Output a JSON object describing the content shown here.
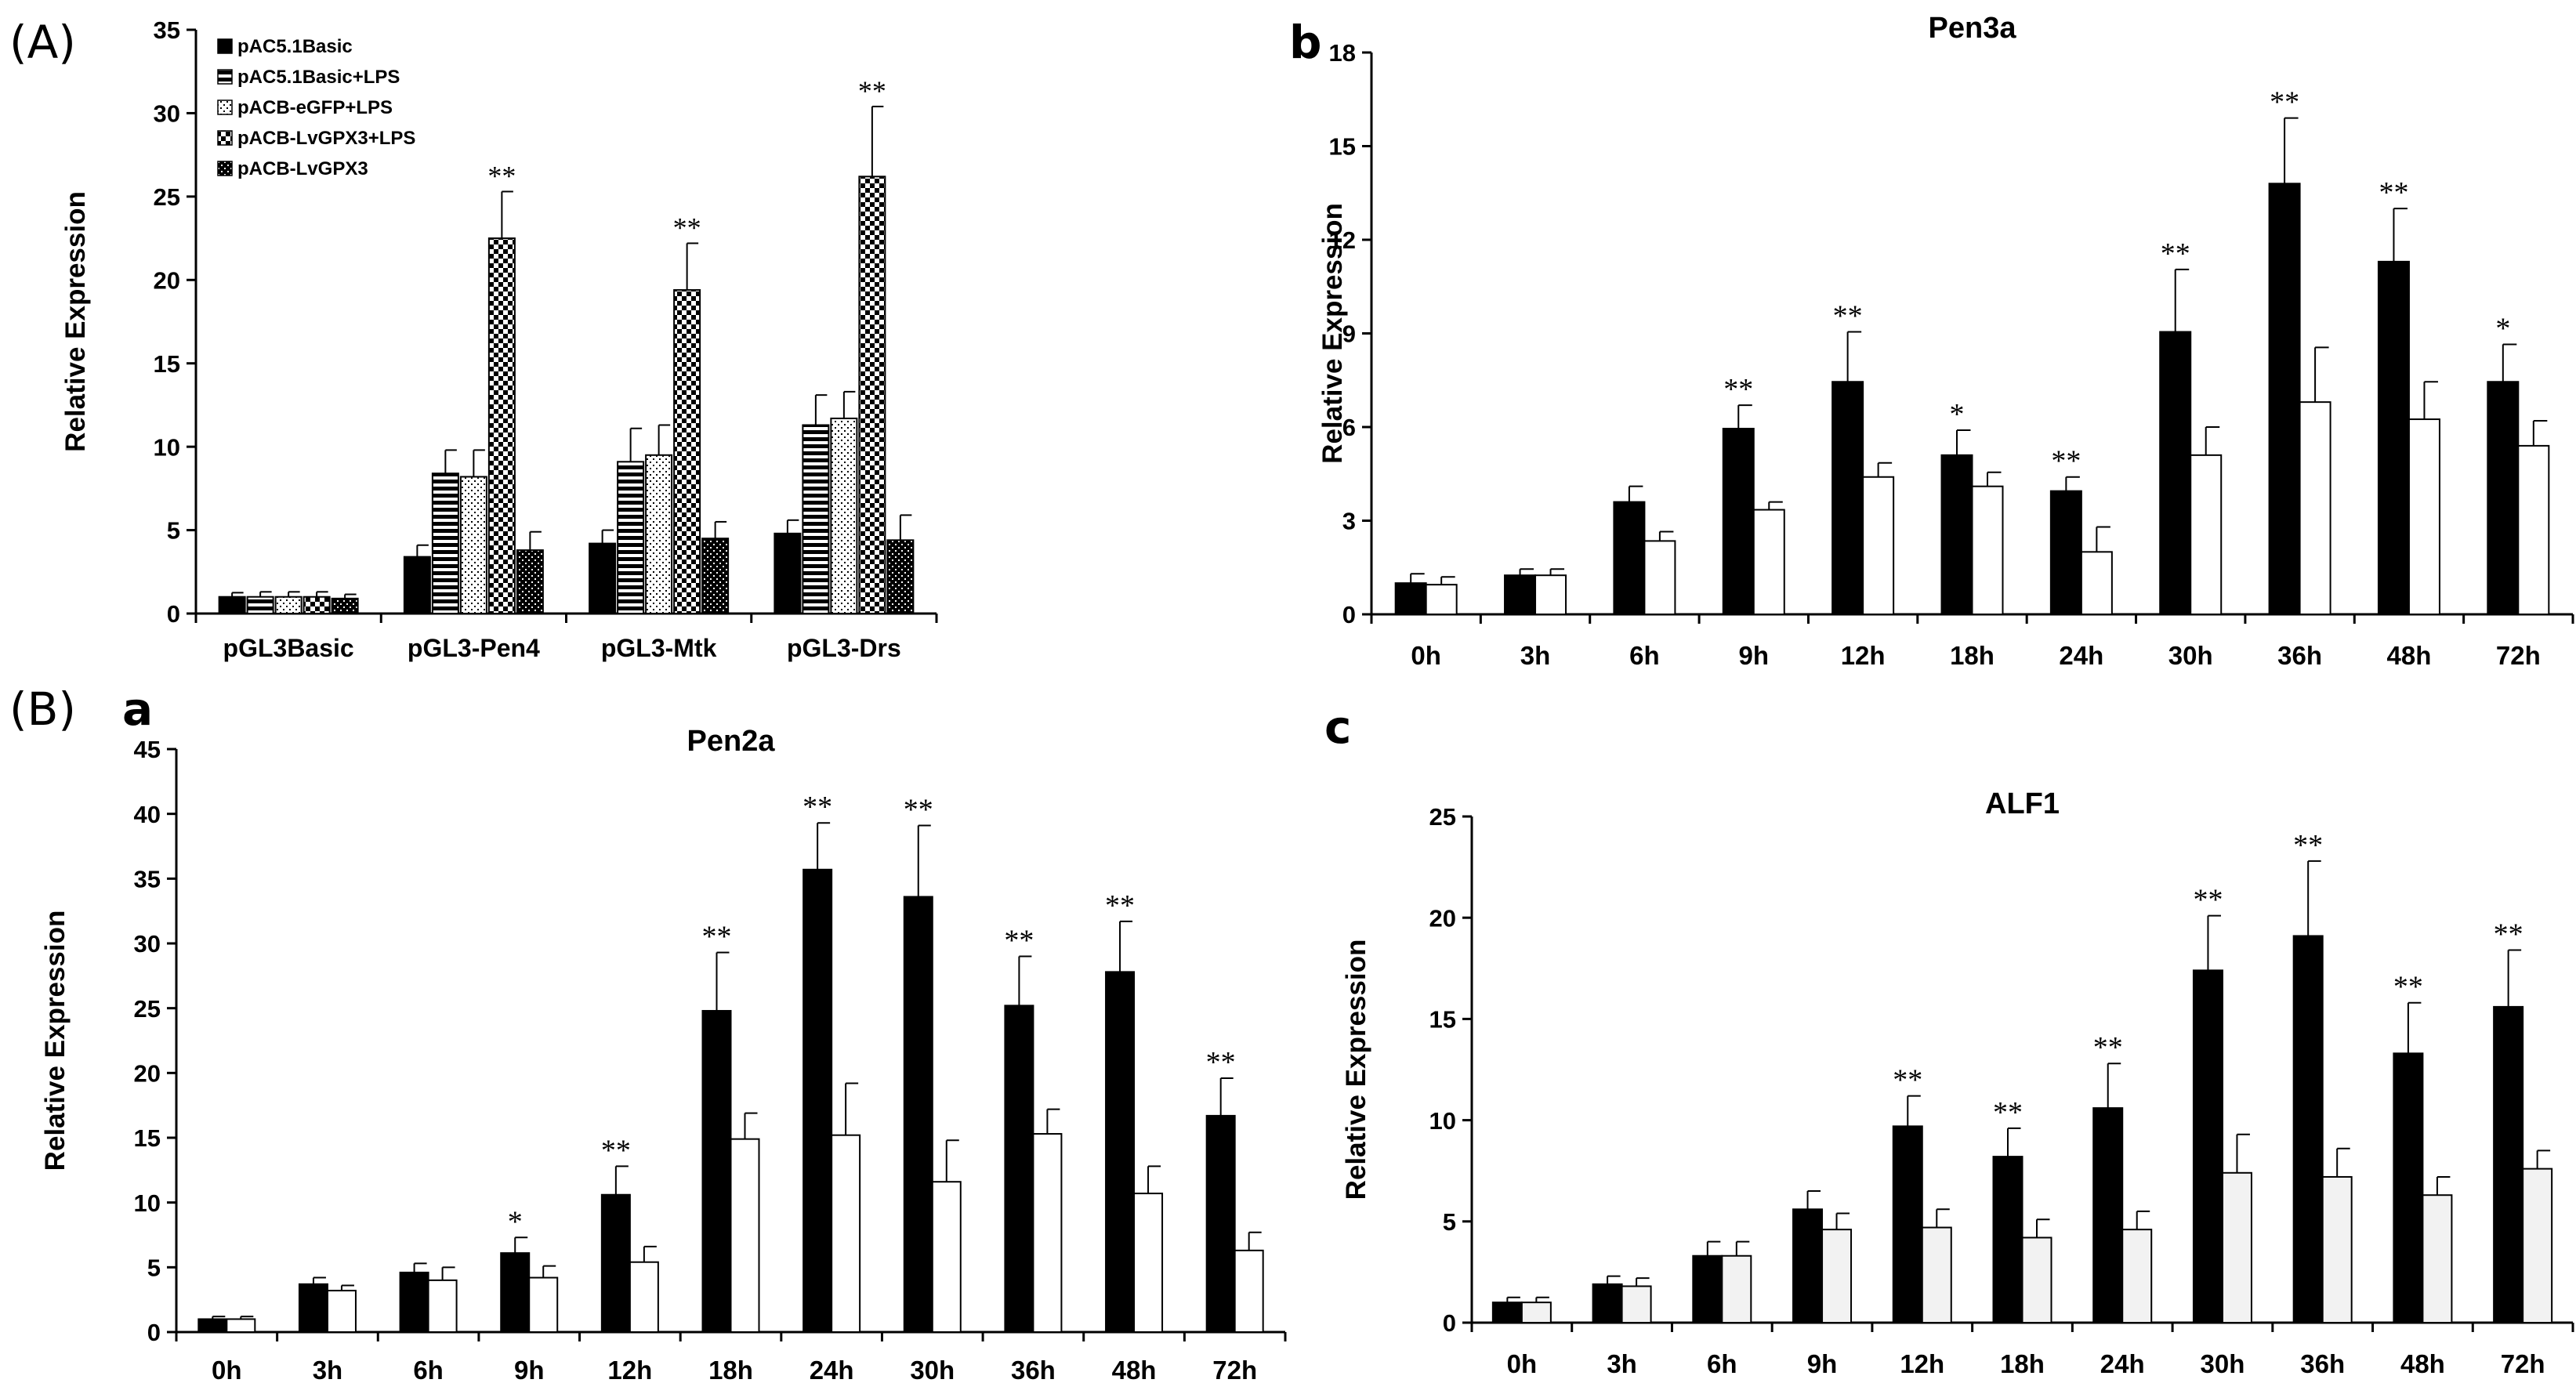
{
  "panel_letters": {
    "A": "(A)",
    "B": "(B)",
    "a": "a",
    "b": "b",
    "c": "c"
  },
  "colors": {
    "black_bar": "#000000",
    "white_bar": "#ffffff",
    "light_bar": "#f2f2f2",
    "axis": "#000000"
  },
  "chart_data": [
    {
      "id": "A",
      "type": "bar",
      "title": "",
      "xlabel": "",
      "ylabel": "Relative Expression",
      "ylim": [
        0,
        35
      ],
      "yticks": [
        0,
        5,
        10,
        15,
        20,
        25,
        30,
        35
      ],
      "categories": [
        "pGL3Basic",
        "pGL3-Pen4",
        "pGL3-Mtk",
        "pGL3-Drs"
      ],
      "legend_position": "top-left",
      "grid": false,
      "series": [
        {
          "name": "pAC5.1Basic",
          "pattern": "solid",
          "values": [
            1.0,
            3.4,
            4.2,
            4.8
          ],
          "errors": [
            0.25,
            0.7,
            0.8,
            0.8
          ],
          "sig": [
            "",
            "",
            "",
            ""
          ]
        },
        {
          "name": "pAC5.1Basic+LPS",
          "pattern": "hlines",
          "values": [
            1.0,
            8.4,
            9.1,
            11.3
          ],
          "errors": [
            0.3,
            1.4,
            2.0,
            1.8
          ],
          "sig": [
            "",
            "",
            "",
            ""
          ]
        },
        {
          "name": "pACB-eGFP+LPS",
          "pattern": "dots",
          "values": [
            1.0,
            8.2,
            9.5,
            11.7
          ],
          "errors": [
            0.3,
            1.6,
            1.8,
            1.6
          ],
          "sig": [
            "",
            "",
            "",
            ""
          ]
        },
        {
          "name": "pACB-LvGPX3+LPS",
          "pattern": "checker",
          "values": [
            1.0,
            22.5,
            19.4,
            26.2
          ],
          "errors": [
            0.3,
            2.8,
            2.8,
            4.2
          ],
          "sig": [
            "",
            "**",
            "**",
            "**"
          ]
        },
        {
          "name": "pACB-LvGPX3",
          "pattern": "dark",
          "values": [
            0.9,
            3.8,
            4.5,
            4.4
          ],
          "errors": [
            0.25,
            1.1,
            1.0,
            1.5
          ],
          "sig": [
            "",
            "",
            "",
            ""
          ]
        }
      ]
    },
    {
      "id": "b",
      "type": "bar",
      "title": "Pen3a",
      "xlabel": "",
      "ylabel": "Relative Expression",
      "ylim": [
        0,
        18
      ],
      "yticks": [
        0,
        3,
        6,
        9,
        12,
        15,
        18
      ],
      "categories": [
        "0h",
        "3h",
        "6h",
        "9h",
        "12h",
        "18h",
        "24h",
        "30h",
        "36h",
        "48h",
        "72h"
      ],
      "grid": false,
      "series": [
        {
          "fill": "#000000",
          "values": [
            1.0,
            1.25,
            3.6,
            5.95,
            7.45,
            5.1,
            3.95,
            9.05,
            13.8,
            11.3,
            7.45
          ],
          "errors": [
            0.3,
            0.2,
            0.5,
            0.75,
            1.6,
            0.8,
            0.45,
            2.0,
            2.1,
            1.7,
            1.2
          ],
          "sig": [
            "",
            "",
            "",
            "**",
            "**",
            "*",
            "**",
            "**",
            "**",
            "**",
            "*"
          ]
        },
        {
          "fill": "#ffffff",
          "values": [
            0.95,
            1.25,
            2.35,
            3.35,
            4.4,
            4.1,
            2.0,
            5.1,
            6.8,
            6.25,
            5.4
          ],
          "errors": [
            0.25,
            0.2,
            0.3,
            0.25,
            0.45,
            0.45,
            0.8,
            0.9,
            1.75,
            1.2,
            0.8
          ],
          "sig": [
            "",
            "",
            "",
            "",
            "",
            "",
            "",
            "",
            "",
            "",
            ""
          ]
        }
      ]
    },
    {
      "id": "a",
      "type": "bar",
      "title": "Pen2a",
      "xlabel": "",
      "ylabel": "Relative Expression",
      "ylim": [
        0,
        45
      ],
      "yticks": [
        0,
        5,
        10,
        15,
        20,
        25,
        30,
        35,
        40,
        45
      ],
      "categories": [
        "0h",
        "3h",
        "6h",
        "9h",
        "12h",
        "18h",
        "24h",
        "30h",
        "36h",
        "48h",
        "72h"
      ],
      "grid": false,
      "series": [
        {
          "fill": "#000000",
          "values": [
            1.0,
            3.7,
            4.6,
            6.1,
            10.6,
            24.8,
            35.7,
            33.6,
            25.2,
            27.8,
            16.7
          ],
          "errors": [
            0.2,
            0.5,
            0.7,
            1.2,
            2.2,
            4.5,
            3.6,
            5.5,
            3.8,
            3.9,
            2.9
          ],
          "sig": [
            "",
            "",
            "",
            "*",
            "**",
            "**",
            "**",
            "**",
            "**",
            "**",
            "**"
          ]
        },
        {
          "fill": "#ffffff",
          "values": [
            1.0,
            3.2,
            4.0,
            4.2,
            5.4,
            14.9,
            15.2,
            11.6,
            15.3,
            10.7,
            6.3
          ],
          "errors": [
            0.2,
            0.4,
            1.0,
            0.9,
            1.2,
            2.0,
            4.0,
            3.2,
            1.9,
            2.1,
            1.4
          ],
          "sig": [
            "",
            "",
            "",
            "",
            "",
            "",
            "",
            "",
            "",
            "",
            ""
          ]
        }
      ]
    },
    {
      "id": "c",
      "type": "bar",
      "title": "ALF1",
      "xlabel": "",
      "ylabel": "Relative Expression",
      "ylim": [
        0,
        25
      ],
      "yticks": [
        0,
        5,
        10,
        15,
        20,
        25
      ],
      "categories": [
        "0h",
        "3h",
        "6h",
        "9h",
        "12h",
        "18h",
        "24h",
        "30h",
        "36h",
        "48h",
        "72h"
      ],
      "grid": false,
      "series": [
        {
          "fill": "#000000",
          "values": [
            1.0,
            1.9,
            3.3,
            5.6,
            9.7,
            8.2,
            10.6,
            17.4,
            19.1,
            13.3,
            15.6
          ],
          "errors": [
            0.25,
            0.4,
            0.7,
            0.9,
            1.5,
            1.4,
            2.2,
            2.7,
            3.7,
            2.5,
            2.8
          ],
          "sig": [
            "",
            "",
            "",
            "",
            "**",
            "**",
            "**",
            "**",
            "**",
            "**",
            "**"
          ]
        },
        {
          "fill": "#f2f2f2",
          "values": [
            1.0,
            1.8,
            3.3,
            4.6,
            4.7,
            4.2,
            4.6,
            7.4,
            7.2,
            6.3,
            7.6
          ],
          "errors": [
            0.25,
            0.4,
            0.7,
            0.8,
            0.9,
            0.9,
            0.9,
            1.9,
            1.4,
            0.9,
            0.9
          ],
          "sig": [
            "",
            "",
            "",
            "",
            "",
            "",
            "",
            "",
            "",
            "",
            ""
          ]
        }
      ]
    }
  ]
}
